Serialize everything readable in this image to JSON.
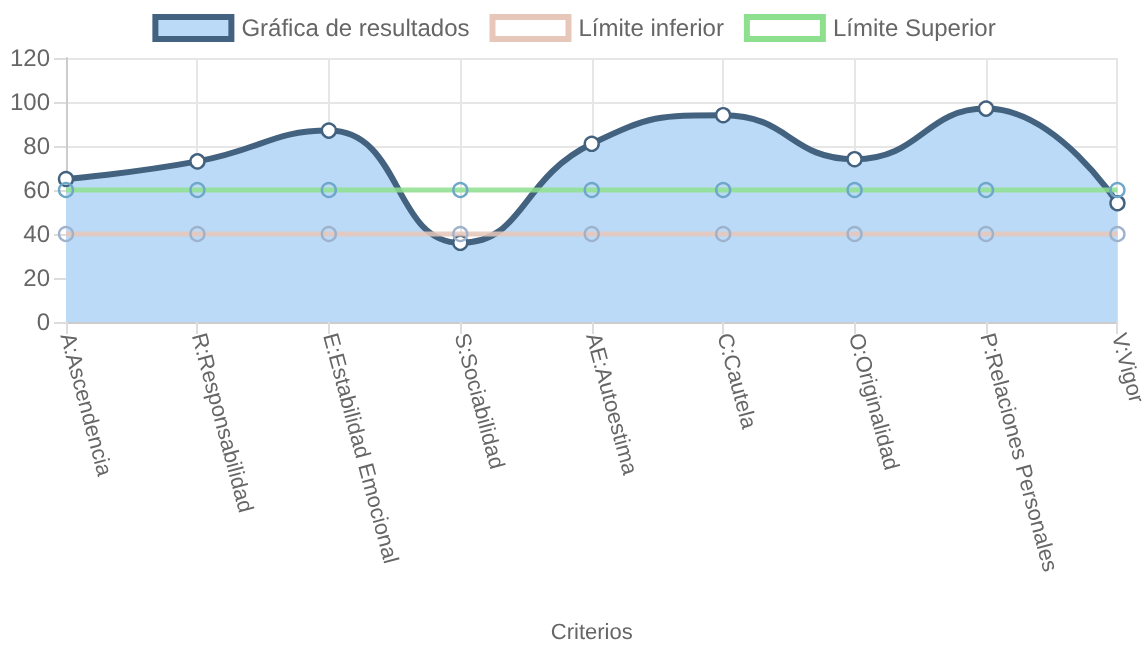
{
  "chart_data": {
    "type": "line",
    "xlabel": "Criterios",
    "categories": [
      "A:Ascendencia",
      "R:Responsabilidad",
      "E:Estabilidad Emocional",
      "S:Sociabilidad",
      "AE:Autoestima",
      "C:Cautela",
      "O:Originalidad",
      "P:Relaciones Personales",
      "V:Vigor"
    ],
    "series": [
      {
        "name": "Gráfica de resultados",
        "type": "area",
        "color": "#43627f",
        "values": [
          65,
          73,
          87,
          36,
          81,
          94,
          74,
          97,
          54
        ]
      },
      {
        "name": "Límite inferior",
        "color": "#e6c7ba",
        "values": [
          40,
          40,
          40,
          40,
          40,
          40,
          40,
          40,
          40
        ]
      },
      {
        "name": "Límite Superior",
        "color": "#8ee08e",
        "values": [
          60,
          60,
          60,
          60,
          60,
          60,
          60,
          60,
          60
        ]
      }
    ],
    "ylim": [
      0,
      120
    ],
    "yticks": [
      0,
      20,
      40,
      60,
      80,
      100,
      120
    ],
    "grid": true,
    "legend": "top",
    "marker": "circle",
    "line_style": "solid"
  }
}
